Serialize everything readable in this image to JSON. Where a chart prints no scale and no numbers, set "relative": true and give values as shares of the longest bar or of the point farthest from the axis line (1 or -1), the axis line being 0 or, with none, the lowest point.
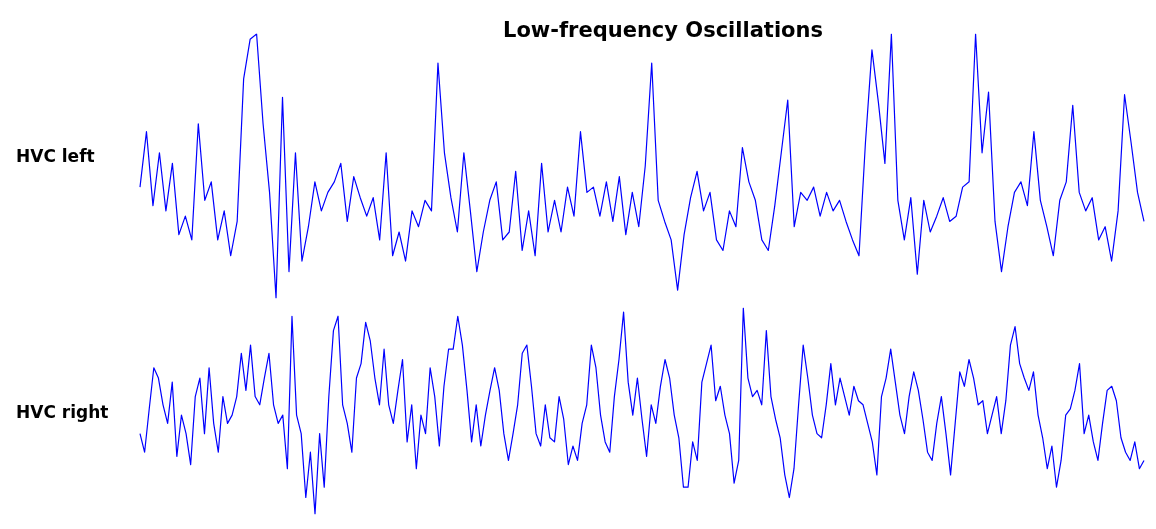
{
  "chart_data": [
    {
      "type": "line",
      "title": "Low-frequency Oscillations",
      "ylabel": "HVC left",
      "relative": true,
      "marker": "none",
      "categories": [
        null,
        null,
        null,
        null,
        null,
        null,
        null,
        null,
        null,
        null,
        null,
        null,
        null,
        null,
        null,
        null,
        null,
        null,
        null,
        null,
        null,
        null,
        null,
        null,
        null,
        null,
        null,
        null,
        null,
        null,
        null,
        null,
        null,
        null,
        null,
        null,
        null,
        null,
        null,
        null,
        null,
        null,
        null,
        null,
        null,
        null,
        null,
        null,
        null,
        null,
        null,
        null,
        null,
        null,
        null,
        null,
        null,
        null,
        null,
        null,
        null,
        null,
        null,
        null,
        null,
        null,
        null,
        null,
        null,
        null,
        null,
        null,
        null,
        null,
        null,
        null,
        null,
        null,
        null,
        null,
        null,
        null,
        null,
        null,
        null,
        null,
        null,
        null,
        null,
        null,
        null,
        null,
        null,
        null,
        null,
        null,
        null,
        null,
        null,
        null,
        null,
        null,
        null,
        null,
        null,
        null,
        null,
        null,
        null,
        null,
        null,
        null,
        null,
        null,
        null,
        null,
        null,
        null,
        null,
        null,
        null,
        null,
        null,
        null,
        null,
        null,
        null,
        null,
        null,
        null,
        null,
        null,
        null,
        null,
        null,
        null,
        null,
        null,
        null,
        null,
        null,
        null,
        null,
        null,
        null,
        null,
        null,
        null,
        null,
        null,
        null,
        null,
        null,
        null,
        null,
        null
      ],
      "series": [
        {
          "color": "#0000ff",
          "values": [
            0.42,
            0.63,
            0.35,
            0.55,
            0.33,
            0.51,
            0.24,
            0.31,
            0.22,
            0.66,
            0.37,
            0.44,
            0.22,
            0.33,
            0.16,
            0.29,
            0.83,
            0.98,
            1,
            0.66,
            0.4,
            0,
            0.76,
            0.1,
            0.55,
            0.14,
            0.27,
            0.44,
            0.33,
            0.4,
            0.44,
            0.51,
            0.29,
            0.46,
            0.38,
            0.31,
            0.38,
            0.22,
            0.55,
            0.16,
            0.25,
            0.14,
            0.33,
            0.27,
            0.37,
            0.33,
            0.89,
            0.55,
            0.38,
            0.25,
            0.55,
            0.33,
            0.1,
            0.25,
            0.37,
            0.44,
            0.22,
            0.25,
            0.48,
            0.18,
            0.33,
            0.16,
            0.51,
            0.25,
            0.37,
            0.25,
            0.42,
            0.31,
            0.63,
            0.4,
            0.42,
            0.31,
            0.44,
            0.29,
            0.46,
            0.24,
            0.4,
            0.27,
            0.5,
            0.89,
            0.37,
            0.29,
            0.22,
            0.03,
            0.24,
            0.38,
            0.48,
            0.33,
            0.4,
            0.22,
            0.18,
            0.33,
            0.27,
            0.57,
            0.44,
            0.37,
            0.22,
            0.18,
            0.35,
            0.55,
            0.75,
            0.27,
            0.4,
            0.37,
            0.42,
            0.31,
            0.4,
            0.33,
            0.37,
            0.29,
            0.22,
            0.16,
            0.59,
            0.94,
            0.74,
            0.51,
            1,
            0.37,
            0.22,
            0.38,
            0.09,
            0.37,
            0.25,
            0.31,
            0.38,
            0.29,
            0.31,
            0.42,
            0.44,
            1,
            0.55,
            0.78,
            0.29,
            0.1,
            0.27,
            0.4,
            0.44,
            0.35,
            0.63,
            0.37,
            0.27,
            0.16,
            0.37,
            0.44,
            0.73,
            0.4,
            0.33,
            0.38,
            0.22,
            0.27,
            0.14,
            0.33,
            0.77,
            0.59,
            0.4,
            0.29
          ]
        }
      ]
    },
    {
      "type": "line",
      "ylabel": "HVC right",
      "relative": true,
      "marker": "none",
      "categories": [
        null,
        null,
        null,
        null,
        null,
        null,
        null,
        null,
        null,
        null,
        null,
        null,
        null,
        null,
        null,
        null,
        null,
        null,
        null,
        null,
        null,
        null,
        null,
        null,
        null,
        null,
        null,
        null,
        null,
        null,
        null,
        null,
        null,
        null,
        null,
        null,
        null,
        null,
        null,
        null,
        null,
        null,
        null,
        null,
        null,
        null,
        null,
        null,
        null,
        null,
        null,
        null,
        null,
        null,
        null,
        null,
        null,
        null,
        null,
        null,
        null,
        null,
        null,
        null,
        null,
        null,
        null,
        null,
        null,
        null,
        null,
        null,
        null,
        null,
        null,
        null,
        null,
        null,
        null,
        null,
        null,
        null,
        null,
        null,
        null,
        null,
        null,
        null,
        null,
        null,
        null,
        null,
        null,
        null,
        null,
        null,
        null,
        null,
        null,
        null,
        null,
        null,
        null,
        null,
        null,
        null,
        null,
        null,
        null,
        null,
        null,
        null,
        null,
        null,
        null,
        null,
        null,
        null,
        null,
        null,
        null,
        null,
        null,
        null,
        null,
        null,
        null,
        null,
        null,
        null,
        null,
        null,
        null,
        null,
        null,
        null,
        null,
        null,
        null,
        null,
        null,
        null,
        null,
        null,
        null,
        null,
        null,
        null,
        null,
        null,
        null,
        null,
        null,
        null,
        null,
        null,
        null,
        null,
        null,
        null,
        null,
        null,
        null,
        null,
        null,
        null,
        null,
        null,
        null,
        null,
        null,
        null,
        null,
        null,
        null,
        null,
        null,
        null,
        null,
        null,
        null,
        null,
        null,
        null,
        null,
        null,
        null,
        null,
        null,
        null,
        null,
        null,
        null,
        null,
        null,
        null,
        null,
        null,
        null,
        null,
        null,
        null,
        null,
        null,
        null,
        null,
        null,
        null,
        null,
        null,
        null,
        null,
        null,
        null,
        null,
        null,
        null,
        null,
        null
      ],
      "series": [
        {
          "color": "#0000ff",
          "values": [
            0.39,
            0.3,
            0.51,
            0.71,
            0.66,
            0.53,
            0.44,
            0.64,
            0.28,
            0.48,
            0.39,
            0.24,
            0.57,
            0.66,
            0.39,
            0.71,
            0.44,
            0.3,
            0.57,
            0.44,
            0.48,
            0.57,
            0.78,
            0.6,
            0.82,
            0.57,
            0.53,
            0.66,
            0.78,
            0.53,
            0.44,
            0.48,
            0.22,
            0.96,
            0.48,
            0.39,
            0.08,
            0.3,
            0,
            0.39,
            0.13,
            0.57,
            0.89,
            0.96,
            0.53,
            0.44,
            0.3,
            0.66,
            0.73,
            0.93,
            0.84,
            0.66,
            0.53,
            0.8,
            0.53,
            0.44,
            0.6,
            0.75,
            0.35,
            0.53,
            0.22,
            0.48,
            0.39,
            0.71,
            0.57,
            0.33,
            0.62,
            0.8,
            0.8,
            0.96,
            0.82,
            0.6,
            0.35,
            0.53,
            0.33,
            0.48,
            0.6,
            0.71,
            0.6,
            0.39,
            0.26,
            0.39,
            0.53,
            0.78,
            0.82,
            0.62,
            0.39,
            0.33,
            0.53,
            0.37,
            0.35,
            0.57,
            0.46,
            0.24,
            0.33,
            0.26,
            0.44,
            0.53,
            0.82,
            0.71,
            0.48,
            0.35,
            0.3,
            0.57,
            0.75,
            0.98,
            0.64,
            0.48,
            0.66,
            0.46,
            0.28,
            0.53,
            0.44,
            0.62,
            0.75,
            0.66,
            0.48,
            0.37,
            0.13,
            0.13,
            0.35,
            0.26,
            0.64,
            0.73,
            0.82,
            0.55,
            0.62,
            0.48,
            0.39,
            0.15,
            0.26,
            1,
            0.66,
            0.57,
            0.6,
            0.53,
            0.89,
            0.57,
            0.46,
            0.37,
            0.19,
            0.08,
            0.22,
            0.53,
            0.82,
            0.66,
            0.48,
            0.39,
            0.37,
            0.53,
            0.73,
            0.53,
            0.66,
            0.57,
            0.48,
            0.62,
            0.55,
            0.53,
            0.44,
            0.35,
            0.19,
            0.57,
            0.66,
            0.8,
            0.64,
            0.48,
            0.39,
            0.57,
            0.69,
            0.6,
            0.46,
            0.3,
            0.26,
            0.44,
            0.57,
            0.39,
            0.19,
            0.44,
            0.69,
            0.62,
            0.75,
            0.66,
            0.53,
            0.55,
            0.39,
            0.48,
            0.57,
            0.39,
            0.55,
            0.82,
            0.91,
            0.73,
            0.66,
            0.6,
            0.69,
            0.48,
            0.37,
            0.22,
            0.33,
            0.13,
            0.26,
            0.48,
            0.51,
            0.6,
            0.73,
            0.39,
            0.48,
            0.35,
            0.26,
            0.44,
            0.6,
            0.62,
            0.55,
            0.37,
            0.3,
            0.26,
            0.35,
            0.22,
            0.26
          ]
        }
      ]
    }
  ]
}
